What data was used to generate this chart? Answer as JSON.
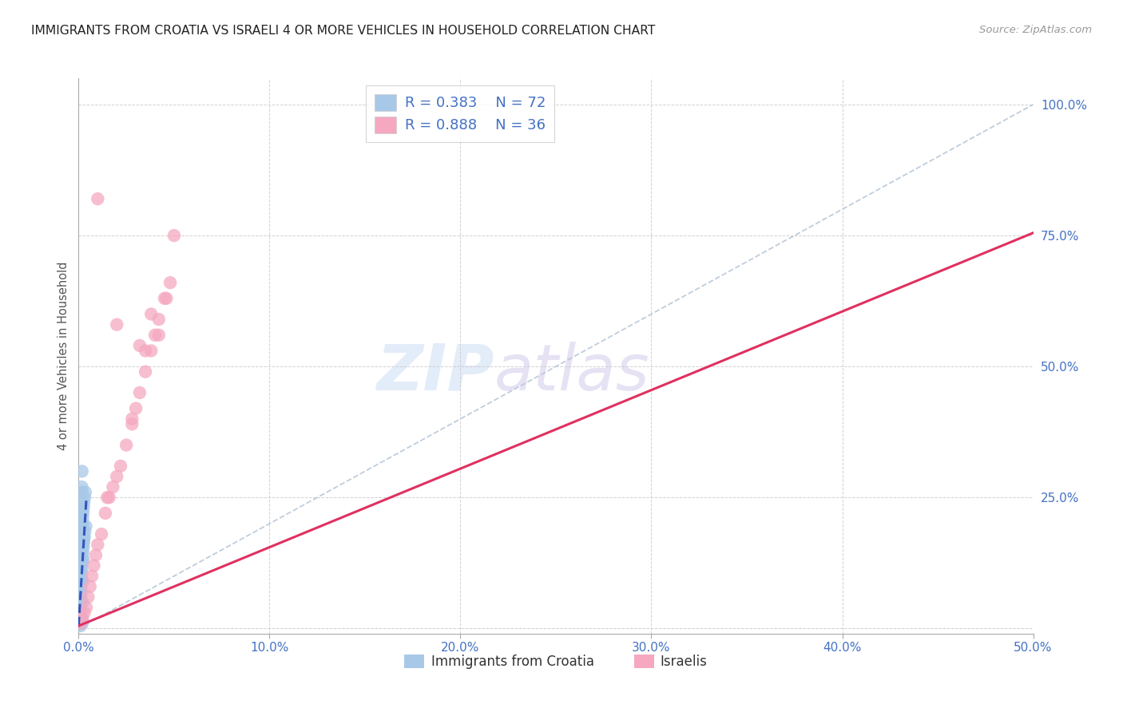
{
  "title": "IMMIGRANTS FROM CROATIA VS ISRAELI 4 OR MORE VEHICLES IN HOUSEHOLD CORRELATION CHART",
  "source": "Source: ZipAtlas.com",
  "ylabel": "4 or more Vehicles in Household",
  "xlim": [
    0.0,
    0.5
  ],
  "ylim": [
    -0.01,
    1.05
  ],
  "xticks": [
    0.0,
    0.1,
    0.2,
    0.3,
    0.4,
    0.5
  ],
  "yticks": [
    0.0,
    0.25,
    0.5,
    0.75,
    1.0
  ],
  "ytick_labels": [
    "",
    "25.0%",
    "50.0%",
    "75.0%",
    "100.0%"
  ],
  "xtick_labels": [
    "0.0%",
    "10.0%",
    "20.0%",
    "30.0%",
    "40.0%",
    "50.0%"
  ],
  "croatia_R": 0.383,
  "croatia_N": 72,
  "israeli_R": 0.888,
  "israeli_N": 36,
  "croatia_color": "#a8c8e8",
  "israeli_color": "#f5a8c0",
  "croatia_line_color": "#3355bb",
  "israeli_line_color": "#e03060",
  "ref_line_color": "#b8c8d8",
  "croatia_x": [
    0.0002,
    0.0003,
    0.0003,
    0.0004,
    0.0004,
    0.0005,
    0.0005,
    0.0006,
    0.0006,
    0.0007,
    0.0007,
    0.0008,
    0.0008,
    0.0009,
    0.0009,
    0.001,
    0.001,
    0.001,
    0.0011,
    0.0011,
    0.0012,
    0.0012,
    0.0013,
    0.0013,
    0.0014,
    0.0014,
    0.0015,
    0.0015,
    0.0016,
    0.0016,
    0.0017,
    0.0017,
    0.0018,
    0.0018,
    0.0019,
    0.002,
    0.002,
    0.0021,
    0.0022,
    0.0023,
    0.0024,
    0.0025,
    0.0026,
    0.0027,
    0.0028,
    0.003,
    0.0032,
    0.0033,
    0.0035,
    0.0038,
    0.0004,
    0.0006,
    0.0008,
    0.001,
    0.0012,
    0.0014,
    0.0016,
    0.0018,
    0.002,
    0.0022,
    0.0005,
    0.0007,
    0.0009,
    0.0011,
    0.0013,
    0.0015,
    0.0017,
    0.0019,
    0.0021,
    0.0023,
    0.0025,
    0.0027
  ],
  "croatia_y": [
    0.01,
    0.015,
    0.03,
    0.02,
    0.05,
    0.008,
    0.04,
    0.012,
    0.06,
    0.018,
    0.07,
    0.025,
    0.08,
    0.035,
    0.09,
    0.005,
    0.1,
    0.045,
    0.11,
    0.055,
    0.12,
    0.065,
    0.13,
    0.075,
    0.14,
    0.085,
    0.15,
    0.095,
    0.16,
    0.105,
    0.17,
    0.115,
    0.18,
    0.125,
    0.19,
    0.015,
    0.2,
    0.135,
    0.21,
    0.145,
    0.22,
    0.155,
    0.23,
    0.165,
    0.24,
    0.175,
    0.25,
    0.185,
    0.26,
    0.195,
    0.02,
    0.06,
    0.1,
    0.14,
    0.18,
    0.22,
    0.26,
    0.3,
    0.2,
    0.16,
    0.03,
    0.07,
    0.11,
    0.15,
    0.19,
    0.23,
    0.27,
    0.01,
    0.05,
    0.09,
    0.13,
    0.17
  ],
  "israeli_x": [
    0.001,
    0.002,
    0.003,
    0.004,
    0.005,
    0.006,
    0.007,
    0.008,
    0.009,
    0.01,
    0.012,
    0.014,
    0.016,
    0.018,
    0.02,
    0.022,
    0.025,
    0.028,
    0.03,
    0.032,
    0.035,
    0.038,
    0.04,
    0.042,
    0.045,
    0.048,
    0.05,
    0.028,
    0.032,
    0.038,
    0.042,
    0.046,
    0.035,
    0.01,
    0.02,
    0.015
  ],
  "israeli_y": [
    0.01,
    0.02,
    0.03,
    0.04,
    0.06,
    0.08,
    0.1,
    0.12,
    0.14,
    0.16,
    0.18,
    0.22,
    0.25,
    0.27,
    0.29,
    0.31,
    0.35,
    0.39,
    0.42,
    0.45,
    0.49,
    0.53,
    0.56,
    0.59,
    0.63,
    0.66,
    0.75,
    0.4,
    0.54,
    0.6,
    0.56,
    0.63,
    0.53,
    0.82,
    0.58,
    0.25
  ]
}
